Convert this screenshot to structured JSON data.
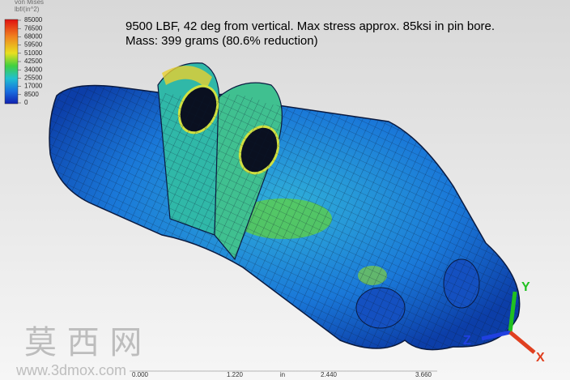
{
  "legend": {
    "title": [
      "von Mises",
      "lbf/(in^2)"
    ],
    "labels": [
      "85000",
      "76500",
      "68000",
      "59500",
      "51000",
      "42500",
      "34000",
      "25500",
      "17000",
      "8500",
      "0"
    ]
  },
  "annotation": [
    "9500 LBF, 42 deg from vertical. Max stress approx. 85ksi in pin bore.",
    "Mass: 399 grams (80.6% reduction)"
  ],
  "triad": {
    "y": "Y",
    "z": "Z",
    "x": "X"
  },
  "ruler": {
    "labels": [
      "0.000",
      "1.220",
      "2.440",
      "3.660"
    ],
    "unit": "in"
  },
  "watermark": {
    "title": "莫 西 网",
    "url": "www.3dmox.com"
  }
}
